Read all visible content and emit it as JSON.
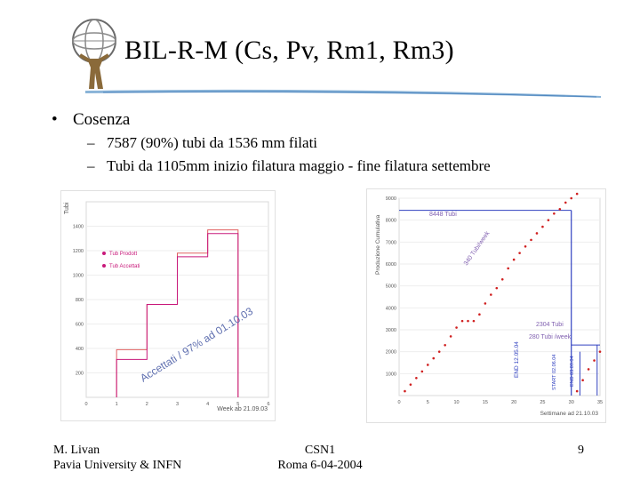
{
  "slide": {
    "title": "BIL-R-M (Cs, Pv, Rm1, Rm3)",
    "bullet": "Cosenza",
    "subitems": [
      "7587 (90%) tubi da 1536 mm filati",
      "Tubi da 1105mm   inizio filatura maggio - fine filatura settembre"
    ]
  },
  "footer": {
    "author": "M. Livan",
    "affiliation": "Pavia University & INFN",
    "meeting": "CSN1",
    "place_date": "Roma 6-04-2004",
    "page": "9"
  },
  "colors": {
    "accent": "#c8187a",
    "rule": "#8ab4d8",
    "rule_dark": "#4f86bf",
    "line_blue": "#3040c0",
    "point_red": "#d02020"
  },
  "chart_data": [
    {
      "type": "bar",
      "ylabel": "Tubi",
      "xlabel": "Week ab 21.09.03",
      "ylim": [
        0,
        1600
      ],
      "xlim": [
        0,
        6
      ],
      "yticks": [
        "200",
        "400",
        "600",
        "800",
        "1000",
        "1200",
        "1400"
      ],
      "xticks": [
        "0",
        "1",
        "2",
        "3",
        "4",
        "5",
        "6"
      ],
      "edges": [
        1,
        2,
        3,
        4,
        5
      ],
      "series": [
        {
          "name": "Tub Prodott",
          "values": [
            390,
            760,
            1180,
            1370
          ]
        },
        {
          "name": "Tub Accettati",
          "values": [
            310,
            760,
            1150,
            1340
          ]
        }
      ],
      "annotation": "Accettati / 97% ad 01.10.03"
    },
    {
      "type": "line",
      "ylabel": "Produzione Cumulativa",
      "xlabel": "Settimane ad 21.10.03",
      "ylim": [
        0,
        9000
      ],
      "xlim": [
        0,
        35
      ],
      "yticks": [
        "1000",
        "2000",
        "3000",
        "4000",
        "5000",
        "6000",
        "7000",
        "8000",
        "9000"
      ],
      "xticks": [
        "0",
        "5",
        "10",
        "15",
        "20",
        "25",
        "30",
        "35"
      ],
      "x": [
        1,
        2,
        3,
        4,
        5,
        6,
        7,
        8,
        9,
        10,
        11,
        12,
        13,
        14,
        15,
        16,
        17,
        18,
        19,
        20,
        21,
        22,
        23,
        24,
        25,
        26,
        27,
        28,
        29,
        30,
        31
      ],
      "y": [
        200,
        500,
        800,
        1100,
        1400,
        1700,
        2000,
        2300,
        2700,
        3100,
        3400,
        3400,
        3400,
        3700,
        4200,
        4600,
        4900,
        5300,
        5800,
        6200,
        6500,
        6800,
        7100,
        7400,
        7700,
        8000,
        8300,
        8500,
        8800,
        9000,
        9200
      ],
      "x2": [
        31,
        32,
        33,
        34,
        35
      ],
      "y2": [
        200,
        700,
        1200,
        1600,
        2000
      ],
      "annotations": [
        "8448 Tubi",
        "340 Tubi/week",
        "2304 Tubi",
        "280 Tubi /week",
        "END 12.05.04",
        "START 02.06.04",
        "END 03.09.04"
      ]
    }
  ]
}
